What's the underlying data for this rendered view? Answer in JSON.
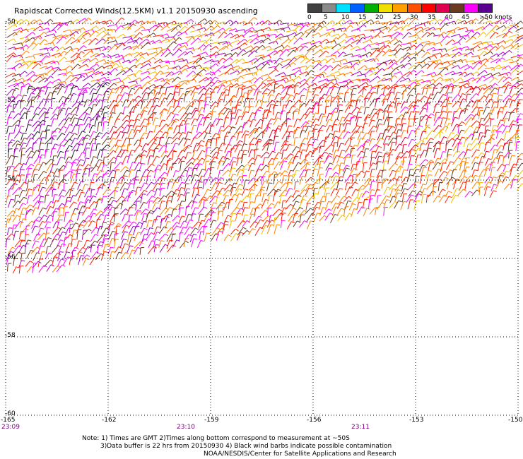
{
  "title": "Rapidscat Corrected Winds(12.5KM) v1.1 20150930 ascending",
  "colorbar": {
    "labels": [
      "0",
      "5",
      "10",
      "15",
      "20",
      "25",
      "30",
      "35",
      "40",
      "45",
      ">50 knots"
    ],
    "colors": [
      "#404040",
      "#8a8a8a",
      "#00e0ff",
      "#0060ff",
      "#00b000",
      "#f0e000",
      "#ffa000",
      "#ff5000",
      "#ff0000",
      "#e00050",
      "#6b3a1e",
      "#ff00ff",
      "#5a0090"
    ]
  },
  "map": {
    "lat_labels": [
      "-50",
      "-52",
      "-54",
      "-56",
      "-58",
      "-60"
    ],
    "lon_labels": [
      "-165",
      "-162",
      "-159",
      "-156",
      "-153",
      "-150"
    ],
    "lon_range": [
      -165,
      -150
    ],
    "lat_range": [
      -50,
      -60
    ],
    "lats": [
      -50,
      -52,
      -54,
      -56,
      -58,
      -60
    ],
    "lons": [
      -165,
      -162,
      -159,
      -156,
      -153,
      -150
    ],
    "swath_boundary_lat_at_west": -56.6,
    "swath_boundary_lat_at_east": -54.3
  },
  "times": [
    "23:09",
    "23:10",
    "23:11"
  ],
  "notes": [
    "Note: 1) Times are GMT 2)Times along bottom correspond to measurement at ~50S",
    "3)Data buffer is 22 hrs from 20150930 4) Black wind barbs indicate possible contamination",
    "NOAA/NESDIS/Center for Satellite Applications and Research"
  ]
}
